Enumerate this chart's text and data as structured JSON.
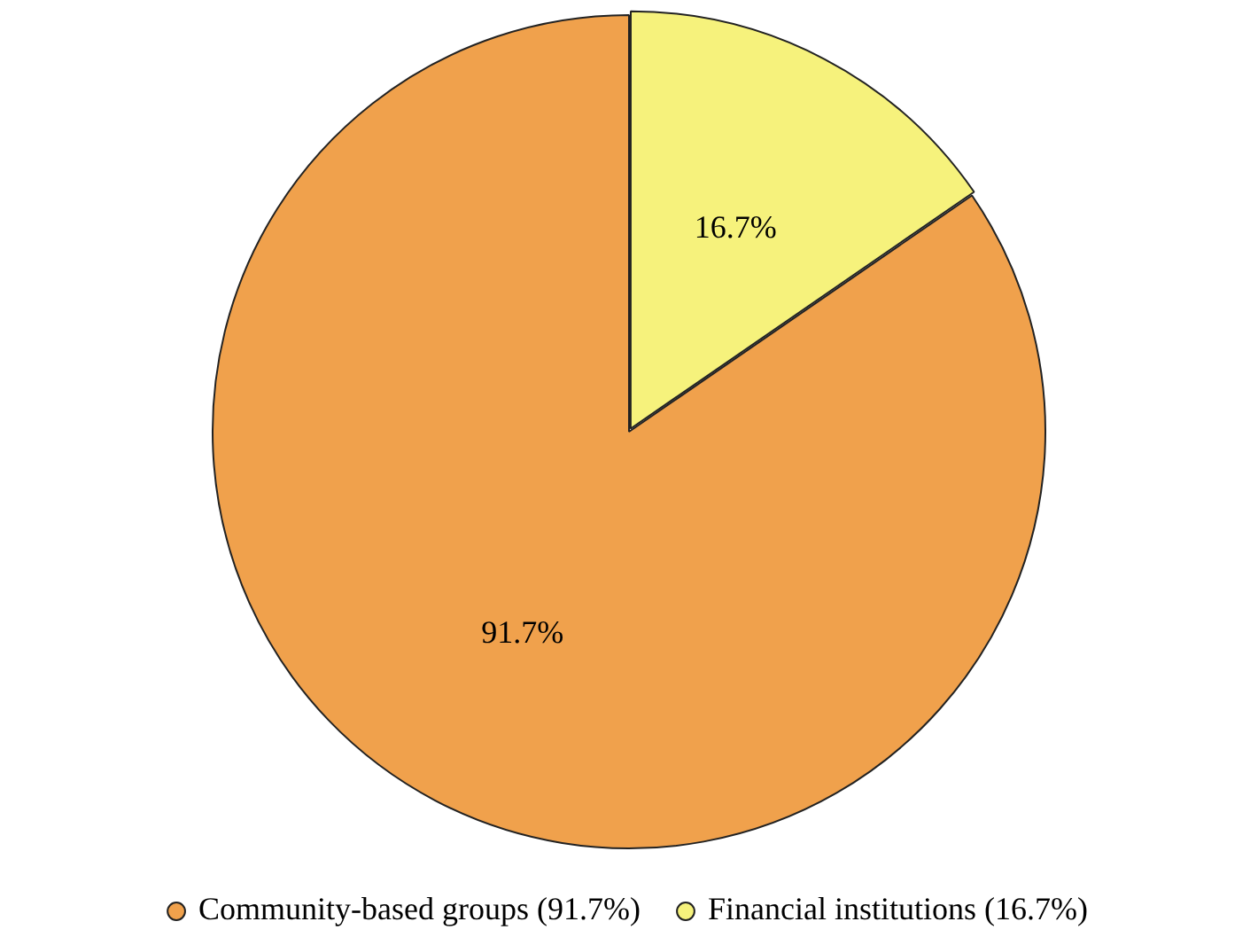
{
  "chart_data": {
    "type": "pie",
    "categories": [
      "Community-based groups (91.7%)",
      "Financial institutions (16.7%)"
    ],
    "values": [
      91.7,
      16.7
    ],
    "colors": [
      "#f0a14c",
      "#f6f27c"
    ],
    "value_labels": [
      "91.7%",
      "16.7%"
    ],
    "legend": "bottom"
  }
}
